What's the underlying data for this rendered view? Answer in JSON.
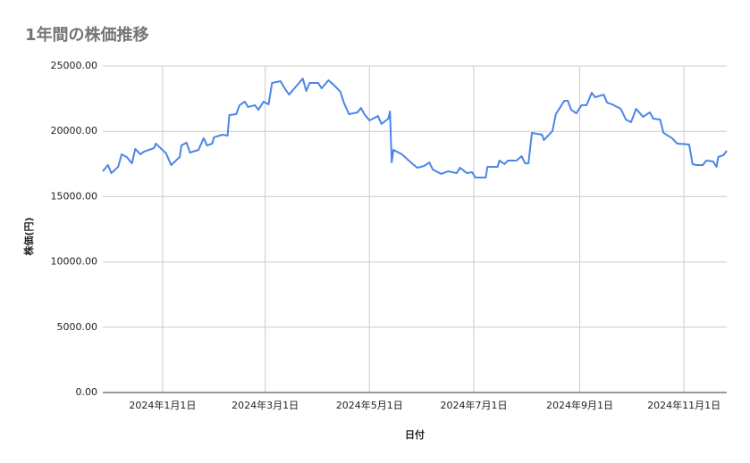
{
  "chart_data": {
    "type": "line",
    "title": "1年間の株価推移",
    "x_label": "日付",
    "y_label": "株価(円)",
    "x": [
      "2023-11-27",
      "2023-11-30",
      "2023-12-02",
      "2023-12-06",
      "2023-12-08",
      "2023-12-11",
      "2023-12-14",
      "2023-12-16",
      "2023-12-19",
      "2023-12-21",
      "2023-12-27",
      "2023-12-28",
      "2024-01-03",
      "2024-01-06",
      "2024-01-11",
      "2024-01-12",
      "2024-01-15",
      "2024-01-17",
      "2024-01-22",
      "2024-01-25",
      "2024-01-27",
      "2024-01-30",
      "2024-01-31",
      "2024-02-05",
      "2024-02-08",
      "2024-02-09",
      "2024-02-13",
      "2024-02-15",
      "2024-02-18",
      "2024-02-20",
      "2024-02-24",
      "2024-02-26",
      "2024-02-29",
      "2024-03-03",
      "2024-03-05",
      "2024-03-10",
      "2024-03-12",
      "2024-03-15",
      "2024-03-19",
      "2024-03-23",
      "2024-03-25",
      "2024-03-27",
      "2024-04-01",
      "2024-04-03",
      "2024-04-07",
      "2024-04-10",
      "2024-04-14",
      "2024-04-16",
      "2024-04-19",
      "2024-04-24",
      "2024-04-26",
      "2024-04-28",
      "2024-05-01",
      "2024-05-06",
      "2024-05-08",
      "2024-05-12",
      "2024-05-13",
      "2024-05-14",
      "2024-05-15",
      "2024-05-20",
      "2024-05-24",
      "2024-05-27",
      "2024-05-29",
      "2024-06-02",
      "2024-06-05",
      "2024-06-07",
      "2024-06-12",
      "2024-06-16",
      "2024-06-21",
      "2024-06-23",
      "2024-06-27",
      "2024-06-30",
      "2024-07-02",
      "2024-07-08",
      "2024-07-09",
      "2024-07-15",
      "2024-07-16",
      "2024-07-19",
      "2024-07-21",
      "2024-07-26",
      "2024-07-29",
      "2024-07-31",
      "2024-08-02",
      "2024-08-04",
      "2024-08-10",
      "2024-08-11",
      "2024-08-16",
      "2024-08-18",
      "2024-08-23",
      "2024-08-25",
      "2024-08-27",
      "2024-08-30",
      "2024-09-02",
      "2024-09-05",
      "2024-09-08",
      "2024-09-10",
      "2024-09-15",
      "2024-09-17",
      "2024-09-20",
      "2024-09-25",
      "2024-09-28",
      "2024-10-01",
      "2024-10-04",
      "2024-10-08",
      "2024-10-12",
      "2024-10-14",
      "2024-10-18",
      "2024-10-20",
      "2024-10-25",
      "2024-10-28",
      "2024-11-04",
      "2024-11-06",
      "2024-11-08",
      "2024-11-12",
      "2024-11-14",
      "2024-11-18",
      "2024-11-20",
      "2024-11-21",
      "2024-11-24",
      "2024-11-26"
    ],
    "series": [
      {
        "name": "株価(円)",
        "color": "#4a86e8",
        "values": [
          16940,
          17420,
          16800,
          17280,
          18240,
          18030,
          17550,
          18650,
          18240,
          18440,
          18720,
          19060,
          18310,
          17420,
          18030,
          18920,
          19130,
          18370,
          18580,
          19470,
          18920,
          19060,
          19540,
          19740,
          19670,
          21240,
          21310,
          22000,
          22270,
          21860,
          22000,
          21650,
          22270,
          22060,
          23700,
          23840,
          23360,
          22810,
          23430,
          24040,
          23090,
          23700,
          23700,
          23290,
          23910,
          23570,
          23020,
          22200,
          21310,
          21450,
          21790,
          21310,
          20830,
          21170,
          20560,
          20970,
          21520,
          17620,
          18580,
          18240,
          17760,
          17420,
          17210,
          17350,
          17620,
          17080,
          16740,
          16940,
          16800,
          17210,
          16800,
          16870,
          16460,
          16460,
          17280,
          17280,
          17760,
          17490,
          17760,
          17760,
          18100,
          17550,
          17550,
          19880,
          19740,
          19330,
          20020,
          21310,
          22340,
          22340,
          21650,
          21380,
          22000,
          22000,
          22950,
          22610,
          22810,
          22200,
          22060,
          21720,
          20900,
          20700,
          21720,
          21110,
          21450,
          20970,
          20900,
          19880,
          19470,
          19060,
          18990,
          17490,
          17420,
          17420,
          17760,
          17690,
          17280,
          18030,
          18170,
          18510
        ]
      }
    ],
    "xlim": [
      "2023-11-27",
      "2024-11-26"
    ],
    "xticks": [
      {
        "value": "2024-01-01",
        "label": "2024年1月1日"
      },
      {
        "value": "2024-03-01",
        "label": "2024年3月1日"
      },
      {
        "value": "2024-05-01",
        "label": "2024年5月1日"
      },
      {
        "value": "2024-07-01",
        "label": "2024年7月1日"
      },
      {
        "value": "2024-09-01",
        "label": "2024年9月1日"
      },
      {
        "value": "2024-11-01",
        "label": "2024年11月1日"
      }
    ],
    "ylim": [
      0,
      25000
    ],
    "yticks": [
      {
        "value": 0,
        "label": "0.00"
      },
      {
        "value": 5000,
        "label": "5000.00"
      },
      {
        "value": 10000,
        "label": "10000.00"
      },
      {
        "value": 15000,
        "label": "15000.00"
      },
      {
        "value": 20000,
        "label": "20000.00"
      },
      {
        "value": 25000,
        "label": "25000.00"
      }
    ],
    "grid": true
  }
}
